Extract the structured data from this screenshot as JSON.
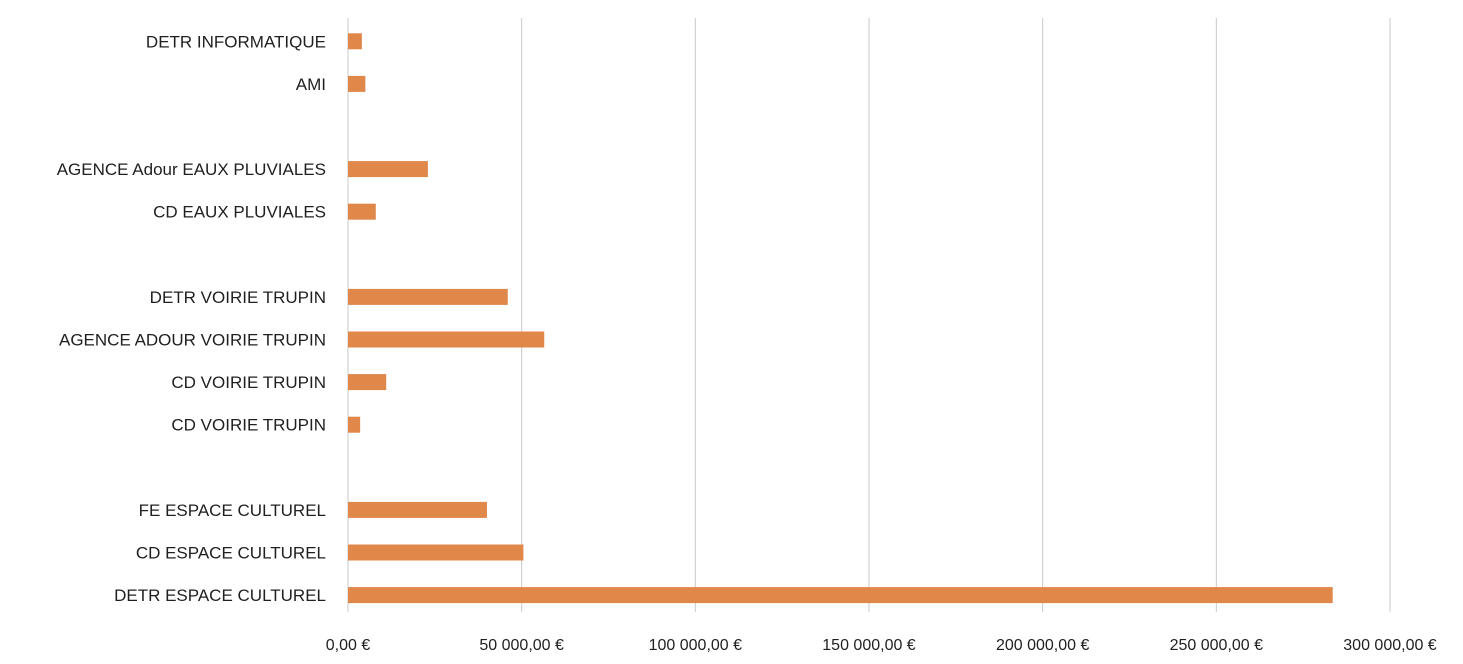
{
  "chart_data": {
    "type": "bar",
    "orientation": "horizontal",
    "categories": [
      "DETR INFORMATIQUE",
      "AMI",
      "",
      "AGENCE Adour EAUX PLUVIALES",
      "CD EAUX PLUVIALES",
      "",
      "DETR VOIRIE TRUPIN",
      "AGENCE ADOUR VOIRIE TRUPIN",
      "CD VOIRIE TRUPIN",
      "CD VOIRIE TRUPIN",
      "",
      "FE ESPACE CULTUREL",
      "CD ESPACE CULTUREL",
      "DETR ESPACE CULTUREL"
    ],
    "values": [
      4000,
      5000,
      null,
      23000,
      8000,
      null,
      46000,
      56500,
      11000,
      3500,
      null,
      40000,
      50500,
      283500
    ],
    "xlim": [
      0,
      300000
    ],
    "x_ticks": [
      0,
      50000,
      100000,
      150000,
      200000,
      250000,
      300000
    ],
    "x_tick_labels": [
      "0,00 €",
      "50 000,00 €",
      "100 000,00 €",
      "150 000,00 €",
      "200 000,00 €",
      "250 000,00 €",
      "300 000,00 €"
    ],
    "title": "",
    "xlabel": "",
    "ylabel": "",
    "grid": true,
    "legend": "none",
    "colors": {
      "bar": "#E0874A",
      "bar_edge": "#C96E30",
      "grid": "#C9C9C9",
      "text": "#1F1F1F"
    }
  }
}
